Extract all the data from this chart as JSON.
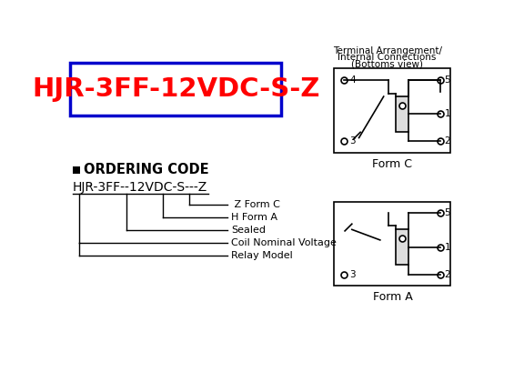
{
  "title_text": "HJR-3FF-12VDC-S-Z",
  "title_color": "#FF0000",
  "title_box_color": "#0000CC",
  "bg_color": "#FFFFFF",
  "ordering_label": "ORDERING CODE",
  "ordering_code": "HJR-3FF--12VDC-S---Z",
  "terminal_title_line1": "Terminal Arrangement/",
  "terminal_title_line2": "Internal Connections",
  "terminal_title_line3": "(Bottoms view)",
  "form_c_label": "Form C",
  "form_a_label": "Form A",
  "legend_lines": [
    " Z Form C",
    "H Form A",
    "Sealed",
    "Coil Nominal Voltage",
    "Relay Model"
  ]
}
